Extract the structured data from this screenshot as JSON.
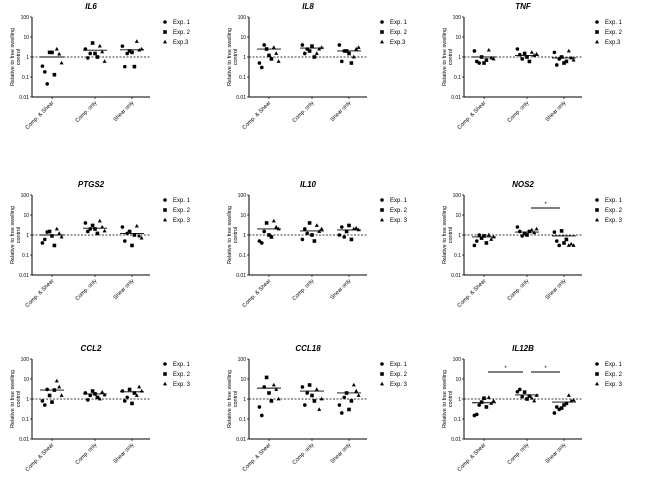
{
  "chart_data": {
    "type": "scatter",
    "y_scale": "log",
    "ylim": [
      0.01,
      100
    ],
    "yticks": [
      "0.01",
      "0.1",
      "1",
      "10",
      "100"
    ],
    "ylabel_lines": [
      "Relative to free swelling",
      "control"
    ],
    "reference_line": 1,
    "categories": [
      "Comp. & Shear",
      "Comp. only",
      "Shear only"
    ],
    "legend_placement": "right",
    "markers": [
      "circle",
      "square",
      "triangle"
    ],
    "panels": [
      {
        "title": "IL6",
        "legend": [
          "Exp. 1",
          "Exp. 2",
          "Exp.3"
        ],
        "medians": [
          1.0,
          2.2,
          2.3
        ],
        "groups": [
          [
            [
              0.35,
              0.18,
              0.045
            ],
            [
              1.7,
              1.7,
              0.13
            ],
            [
              2.5,
              1.4,
              0.5
            ]
          ],
          [
            [
              2.5,
              0.9,
              1.5
            ],
            [
              5,
              1.5,
              1
            ],
            [
              3.5,
              1.8,
              0.6
            ]
          ],
          [
            [
              3.5,
              0.33,
              1.5
            ],
            [
              2,
              1.7,
              0.33
            ],
            [
              6,
              2.2,
              2.5
            ]
          ]
        ],
        "sig": []
      },
      {
        "title": "IL8",
        "legend": [
          "Exp. 1",
          "Exp. 2",
          "Exp.3"
        ],
        "medians": [
          2.5,
          2.8,
          2.0
        ],
        "groups": [
          [
            [
              0.5,
              0.3,
              4
            ],
            [
              2.5,
              1.2,
              0.8
            ],
            [
              3,
              1.5,
              0.6
            ]
          ],
          [
            [
              4,
              1.5,
              2.5
            ],
            [
              2,
              3.5,
              1
            ],
            [
              1.5,
              2.5,
              3
            ]
          ],
          [
            [
              4,
              0.6,
              2
            ],
            [
              2,
              1.5,
              0.5
            ],
            [
              1,
              2.5,
              3
            ]
          ]
        ],
        "sig": []
      },
      {
        "title": "TNF",
        "legend": [
          "Exp. 1",
          "Exp. 2",
          "Exp.3"
        ],
        "medians": [
          1.0,
          1.2,
          0.9
        ],
        "groups": [
          [
            [
              2,
              0.6,
              0.5
            ],
            [
              1,
              0.5,
              0.7
            ],
            [
              2.2,
              0.9,
              0.8
            ]
          ],
          [
            [
              2.5,
              1.3,
              0.8
            ],
            [
              1.5,
              1,
              0.6
            ],
            [
              1.7,
              1.2,
              1.4
            ]
          ],
          [
            [
              1.7,
              0.4,
              0.8
            ],
            [
              1,
              0.5,
              0.6
            ],
            [
              2,
              0.9,
              0.7
            ]
          ]
        ],
        "sig": []
      },
      {
        "title": "PTGS2",
        "legend": [
          "Exp. 1",
          "Exp. 2",
          "Exp. 3"
        ],
        "medians": [
          1.0,
          2.2,
          1.2
        ],
        "groups": [
          [
            [
              0.4,
              0.6,
              1.4
            ],
            [
              1.5,
              0.9,
              0.3
            ],
            [
              2,
              1.2,
              0.8
            ]
          ],
          [
            [
              4,
              1.5,
              2
            ],
            [
              3,
              2,
              1.2
            ],
            [
              5,
              2.5,
              1.6
            ]
          ],
          [
            [
              2.5,
              0.5,
              1.2
            ],
            [
              1.5,
              0.3,
              1
            ],
            [
              2.8,
              0.9,
              0.7
            ]
          ]
        ],
        "sig": []
      },
      {
        "title": "IL10",
        "legend": [
          "Exp. 1",
          "Exp. 2",
          "Exp. 3"
        ],
        "medians": [
          2.0,
          1.6,
          1.8
        ],
        "groups": [
          [
            [
              0.5,
              0.4,
              1.5
            ],
            [
              4,
              1,
              0.8
            ],
            [
              5,
              2.5,
              2
            ]
          ],
          [
            [
              0.6,
              2,
              1.2
            ],
            [
              4,
              1,
              0.5
            ],
            [
              3,
              1.5,
              2
            ]
          ],
          [
            [
              1,
              2.5,
              0.8
            ],
            [
              1.5,
              3,
              0.6
            ],
            [
              2,
              2.2,
              1.8
            ]
          ]
        ],
        "sig": []
      },
      {
        "title": "NOS2",
        "legend": [
          "Exp. 1",
          "Exp. 2",
          "Exp. 3"
        ],
        "medians": [
          0.8,
          1.4,
          0.9
        ],
        "groups": [
          [
            [
              0.3,
              0.5,
              1
            ],
            [
              0.7,
              0.9,
              0.4
            ],
            [
              1,
              0.6,
              0.8
            ]
          ],
          [
            [
              2.5,
              1.5,
              0.9
            ],
            [
              1.2,
              1,
              1.5
            ],
            [
              1.8,
              1.3,
              2
            ]
          ],
          [
            [
              1.4,
              0.5,
              0.3
            ],
            [
              1.6,
              0.4,
              0.6
            ],
            [
              0.3,
              0.35,
              0.3
            ]
          ]
        ],
        "sig": [
          {
            "from": 1,
            "to": 2,
            "label": "*",
            "y": 20
          }
        ]
      },
      {
        "title": "CCL2",
        "legend": [
          "Exp. 1",
          "Exp. 2",
          "Exp. 3"
        ],
        "medians": [
          2.8,
          1.8,
          2.3
        ],
        "groups": [
          [
            [
              0.8,
              0.5,
              3
            ],
            [
              1.5,
              0.7,
              2.8
            ],
            [
              8,
              4,
              1.5
            ]
          ],
          [
            [
              2,
              0.9,
              1.5
            ],
            [
              2.5,
              1.8,
              1.2
            ],
            [
              1,
              2.2,
              1.6
            ]
          ],
          [
            [
              2.5,
              0.8,
              1.2
            ],
            [
              3,
              0.6,
              2
            ],
            [
              1.5,
              4,
              2.5
            ]
          ]
        ],
        "sig": []
      },
      {
        "title": "CCL18",
        "legend": [
          "Exp. 1",
          "Exp. 2",
          "Exp. 3"
        ],
        "medians": [
          3.5,
          2.5,
          2.0
        ],
        "groups": [
          [
            [
              0.4,
              0.15,
              4
            ],
            [
              12,
              2,
              0.8
            ],
            [
              5,
              3,
              1
            ]
          ],
          [
            [
              4,
              0.5,
              2
            ],
            [
              5,
              1.5,
              0.8
            ],
            [
              3,
              0.3,
              1
            ]
          ],
          [
            [
              0.5,
              0.2,
              1.2
            ],
            [
              2,
              0.3,
              0.8
            ],
            [
              5,
              2.5,
              1.5
            ]
          ]
        ],
        "sig": []
      },
      {
        "title": "IL12B",
        "legend": [
          "Exp. 1",
          "Exp. 2",
          "Exp. 3"
        ],
        "medians": [
          0.65,
          1.6,
          0.7
        ],
        "groups": [
          [
            [
              0.15,
              0.17,
              0.5
            ],
            [
              0.7,
              1.1,
              0.4
            ],
            [
              1.2,
              0.6,
              0.8
            ]
          ],
          [
            [
              2.3,
              3,
              1.3
            ],
            [
              2.2,
              1,
              1.4
            ],
            [
              1.1,
              0.8,
              1.5
            ]
          ],
          [
            [
              0.2,
              0.4,
              0.3
            ],
            [
              0.35,
              0.5,
              0.6
            ],
            [
              1.5,
              0.8,
              0.9
            ]
          ]
        ],
        "sig": [
          {
            "from": 0,
            "to": 1,
            "label": "*",
            "y": 20
          },
          {
            "from": 1,
            "to": 2,
            "label": "*",
            "y": 20
          }
        ]
      }
    ]
  }
}
